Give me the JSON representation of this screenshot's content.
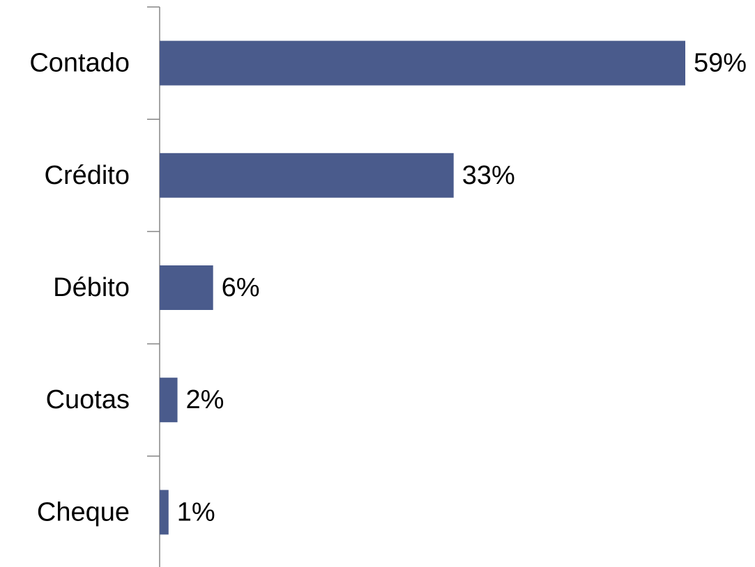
{
  "chart_data": {
    "type": "bar",
    "orientation": "horizontal",
    "categories": [
      "Contado",
      "Crédito",
      "Débito",
      "Cuotas",
      "Cheque"
    ],
    "values": [
      59,
      33,
      6,
      2,
      1
    ],
    "data_labels": [
      "59%",
      "33%",
      "6%",
      "2%",
      "1%"
    ],
    "unit": "%",
    "xlim": [
      0,
      59
    ],
    "grid": false,
    "legend": "none",
    "bar_color": "#4a5b8c"
  }
}
